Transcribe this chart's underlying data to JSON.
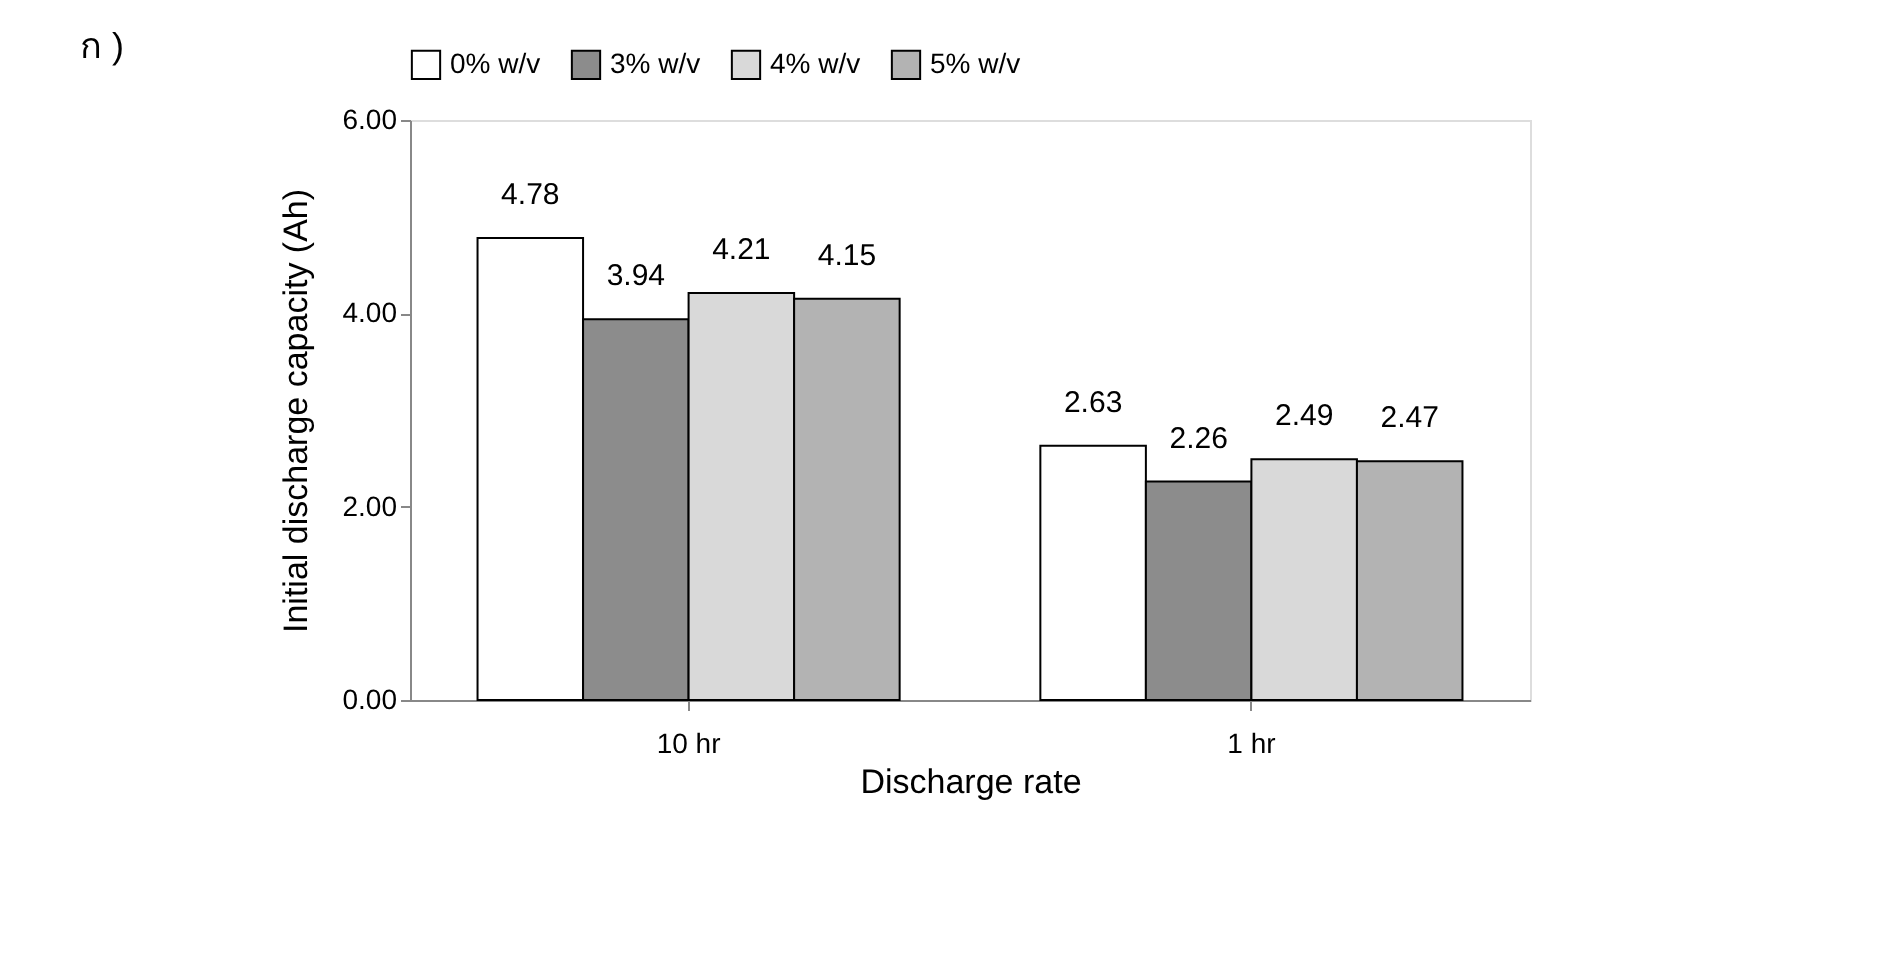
{
  "chart_data": {
    "type": "bar",
    "xlabel": "Discharge rate",
    "ylabel": "Initial discharge capacity (Ah)",
    "categories": [
      "10 hr",
      "1 hr"
    ],
    "series": [
      {
        "name": "0% w/v",
        "color": "#ffffff",
        "values": [
          4.78,
          2.63
        ]
      },
      {
        "name": "3% w/v",
        "color": "#8c8c8c",
        "values": [
          3.94,
          2.26
        ]
      },
      {
        "name": "4% w/v",
        "color": "#d9d9d9",
        "values": [
          4.21,
          2.49
        ]
      },
      {
        "name": "5% w/v",
        "color": "#b3b3b3",
        "values": [
          4.15,
          2.47
        ]
      }
    ],
    "ylim": [
      0,
      6
    ],
    "yticks": [
      {
        "value": 0,
        "label": "0.00"
      },
      {
        "value": 2,
        "label": "2.00"
      },
      {
        "value": 4,
        "label": "4.00"
      },
      {
        "value": 6,
        "label": "6.00"
      }
    ],
    "data_labels": true,
    "legend": "top",
    "grid": false,
    "annotations": [
      "ก )"
    ]
  }
}
